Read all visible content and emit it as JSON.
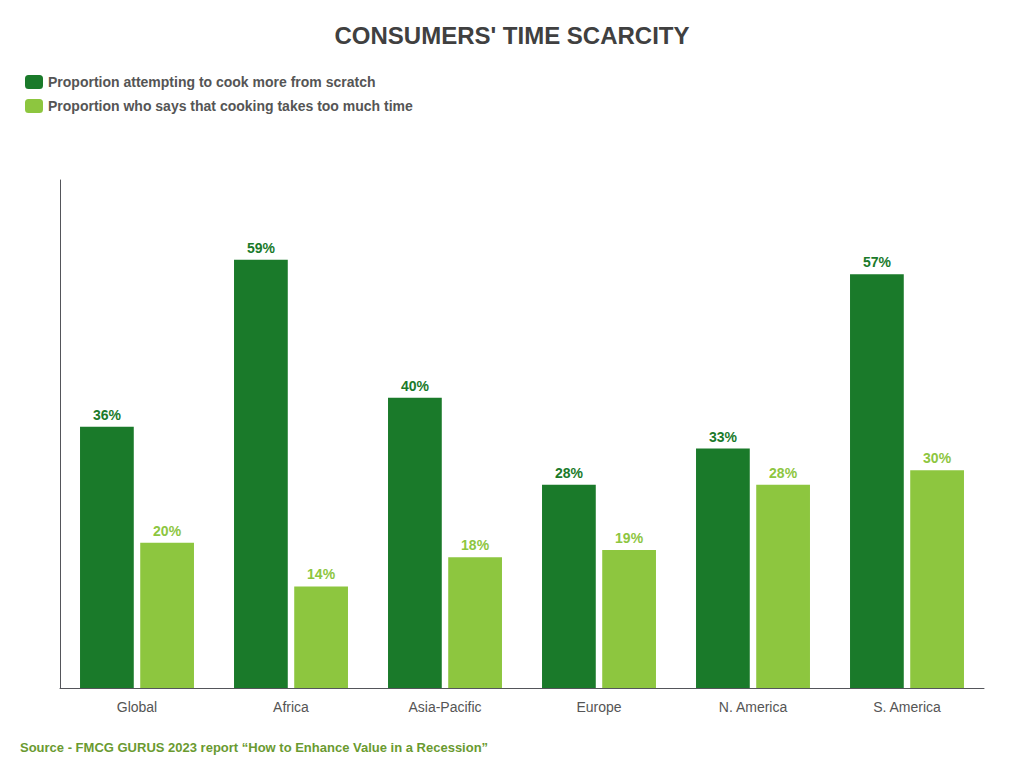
{
  "chart_data": {
    "type": "bar",
    "title": "CONSUMERS' TIME SCARCITY",
    "categories": [
      "Global",
      "Africa",
      "Asia-Pacific",
      "Europe",
      "N. America",
      "S. America"
    ],
    "series": [
      {
        "name": "Proportion attempting to cook more from scratch",
        "color": "#1a7a2a",
        "values": [
          36,
          59,
          40,
          28,
          33,
          57
        ],
        "value_labels": [
          "36%",
          "59%",
          "40%",
          "28%",
          "33%",
          "57%"
        ]
      },
      {
        "name": "Proportion who says that cooking takes too much time",
        "color": "#8dc63f",
        "values": [
          20,
          14,
          18,
          19,
          28,
          30
        ],
        "value_labels": [
          "20%",
          "14%",
          "18%",
          "19%",
          "28%",
          "30%"
        ]
      }
    ],
    "ylim": [
      0,
      70
    ],
    "grid": false,
    "tick_labels": "x",
    "data_labels": true,
    "legend": "upper left",
    "annotations": [
      "Source - FMCG GURUS 2023 report “How to Enhance Value in a Recession”"
    ]
  }
}
